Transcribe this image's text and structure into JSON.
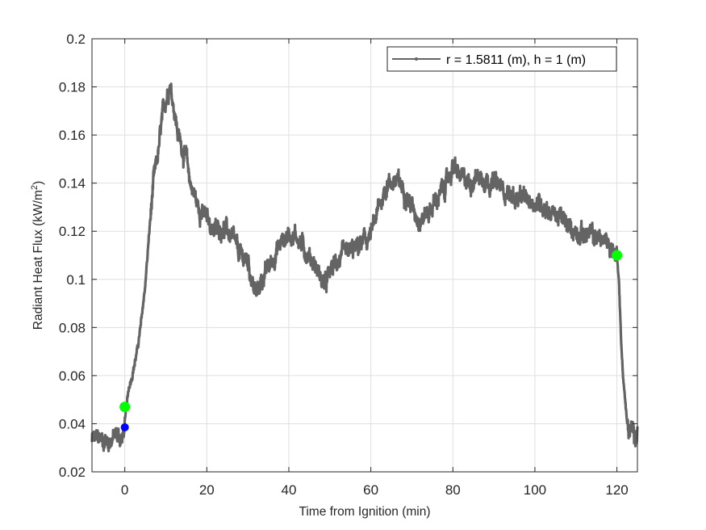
{
  "chart_data": {
    "type": "line",
    "title": "",
    "xlabel": "Time from Ignition (min)",
    "ylabel": "Radiant Heat Flux (kW/m^2)",
    "ylabel_base": "Radiant Heat Flux (kW/m",
    "ylabel_sup": "2",
    "ylabel_close": ")",
    "xlim": [
      -8,
      125
    ],
    "ylim": [
      0.02,
      0.2
    ],
    "xticks": [
      0,
      20,
      40,
      60,
      80,
      100,
      120
    ],
    "yticks": [
      0.02,
      0.04,
      0.06,
      0.08,
      0.1,
      0.12,
      0.14,
      0.16,
      0.18,
      0.2
    ],
    "ytick_labels": [
      "0.02",
      "0.04",
      "0.06",
      "0.08",
      "0.1",
      "0.12",
      "0.14",
      "0.16",
      "0.18",
      "0.2"
    ],
    "grid": true,
    "legend_position": "northeast",
    "series": [
      {
        "name": "r = 1.5811 (m), h = 1 (m)",
        "color": "#646464",
        "marker": ".",
        "x": [
          -8,
          -6,
          -4,
          -2,
          -0.5,
          0,
          1,
          2,
          3,
          4,
          5,
          6,
          7,
          8,
          9,
          10,
          11,
          12,
          13,
          14,
          15,
          16,
          18,
          20,
          22,
          24,
          26,
          28,
          30,
          31,
          32,
          33,
          34,
          36,
          38,
          40,
          42,
          44,
          46,
          48,
          49,
          50,
          52,
          54,
          56,
          58,
          60,
          62,
          64,
          66,
          68,
          70,
          72,
          74,
          76,
          78,
          80,
          82,
          84,
          86,
          88,
          90,
          92,
          94,
          96,
          98,
          100,
          102,
          104,
          106,
          108,
          110,
          112,
          114,
          116,
          118,
          120,
          120.5,
          121,
          121.5,
          122,
          122.5,
          123,
          124,
          125
        ],
        "y": [
          0.033,
          0.034,
          0.033,
          0.035,
          0.034,
          0.04,
          0.055,
          0.062,
          0.07,
          0.082,
          0.098,
          0.12,
          0.14,
          0.15,
          0.165,
          0.175,
          0.182,
          0.172,
          0.16,
          0.155,
          0.15,
          0.14,
          0.13,
          0.125,
          0.12,
          0.122,
          0.118,
          0.11,
          0.108,
          0.1,
          0.093,
          0.098,
          0.102,
          0.108,
          0.115,
          0.119,
          0.118,
          0.112,
          0.107,
          0.1,
          0.097,
          0.103,
          0.108,
          0.11,
          0.112,
          0.115,
          0.118,
          0.13,
          0.14,
          0.141,
          0.138,
          0.13,
          0.125,
          0.128,
          0.133,
          0.138,
          0.147,
          0.142,
          0.14,
          0.143,
          0.142,
          0.14,
          0.138,
          0.135,
          0.133,
          0.133,
          0.132,
          0.131,
          0.128,
          0.126,
          0.122,
          0.12,
          0.119,
          0.118,
          0.117,
          0.115,
          0.11,
          0.1,
          0.075,
          0.06,
          0.05,
          0.04,
          0.036,
          0.037,
          0.036
        ]
      }
    ],
    "annotations": [
      {
        "label": "green-marker-start",
        "x": 0,
        "y": 0.047,
        "color": "#00ff00"
      },
      {
        "label": "blue-marker-start",
        "x": 0,
        "y": 0.0385,
        "color": "#0000ff"
      },
      {
        "label": "green-marker-end",
        "x": 120,
        "y": 0.11,
        "color": "#00ff00"
      }
    ]
  },
  "legend": {
    "entry_label": "r = 1.5811 (m), h = 1 (m)"
  },
  "colors": {
    "line": "#646464",
    "axis": "#262626",
    "grid": "#dfdfdf",
    "green_marker": "#00ff00",
    "blue_marker": "#0000ff"
  }
}
